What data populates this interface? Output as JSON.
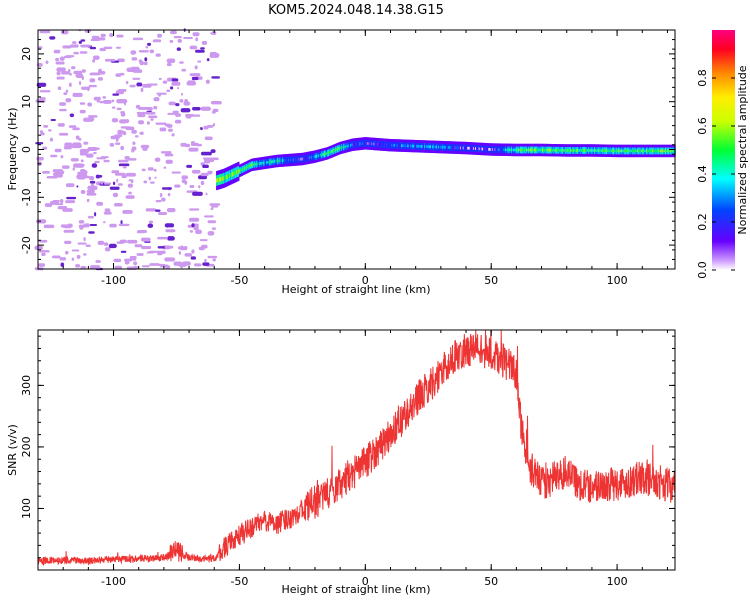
{
  "title": "KOM5.2024.048.14.38.G15",
  "colors": {
    "snr_line": "#ee3333",
    "noise_purple": "#cc99ee",
    "noise_dark": "#6622cc"
  },
  "chart_data": [
    {
      "type": "heatmap",
      "xlabel": "Height of straight line (km)",
      "ylabel": "Frequency (Hz)",
      "xlim": [
        -130,
        123
      ],
      "ylim": [
        -25,
        25
      ],
      "xticks": [
        -100,
        -50,
        0,
        50,
        100
      ],
      "yticks": [
        -20,
        -10,
        0,
        10,
        20
      ],
      "grid": false,
      "colorbar": {
        "label": "Normalized spectral amplitude",
        "range": [
          0,
          1
        ],
        "ticks": [
          "0.0",
          "0.2",
          "0.4",
          "0.6",
          "0.8"
        ],
        "colormap": "gist_rainbow_r"
      },
      "noise_region_x": [
        -130,
        -59
      ],
      "ridge": {
        "x": [
          -59,
          -56,
          -50,
          -45,
          -40,
          -35,
          -30,
          -25,
          -20,
          -15,
          -10,
          -5,
          0,
          5,
          10,
          20,
          30,
          40,
          50,
          60,
          70,
          80,
          90,
          100,
          110,
          123
        ],
        "freq": [
          -6.5,
          -6,
          -4.5,
          -3.2,
          -2.8,
          -2.4,
          -2.2,
          -2.0,
          -1.5,
          -0.8,
          0.3,
          1.0,
          1.3,
          1.1,
          0.9,
          0.7,
          0.5,
          0.3,
          0.0,
          -0.1,
          -0.1,
          -0.2,
          -0.2,
          -0.3,
          -0.3,
          -0.3
        ],
        "amplitude": [
          0.62,
          0.58,
          0.55,
          0.5,
          0.35,
          0.42,
          0.3,
          0.15,
          0.3,
          0.5,
          0.45,
          0.25,
          0.18,
          0.12,
          0.25,
          0.3,
          0.32,
          0.1,
          0.08,
          0.5,
          0.52,
          0.5,
          0.48,
          0.5,
          0.5,
          0.52
        ]
      }
    },
    {
      "type": "line",
      "xlabel": "Height of straight line (km)",
      "ylabel": "SNR (v/v)",
      "xlim": [
        -130,
        123
      ],
      "ylim": [
        0,
        390
      ],
      "xticks": [
        -100,
        -50,
        0,
        50,
        100
      ],
      "yticks": [
        100,
        200,
        300
      ],
      "grid": false,
      "series": [
        {
          "x": [
            -130,
            -120,
            -110,
            -100,
            -90,
            -80,
            -75,
            -70,
            -60,
            -55,
            -50,
            -45,
            -40,
            -35,
            -30,
            -20,
            -10,
            0,
            10,
            20,
            30,
            35,
            40,
            45,
            50,
            55,
            60,
            62,
            65,
            70,
            75,
            80,
            85,
            90,
            100,
            110,
            115,
            123
          ],
          "values": [
            15,
            16,
            15,
            17,
            18,
            20,
            30,
            20,
            18,
            40,
            55,
            70,
            80,
            75,
            85,
            110,
            140,
            175,
            220,
            275,
            320,
            345,
            358,
            360,
            350,
            340,
            320,
            230,
            170,
            140,
            150,
            160,
            140,
            135,
            140,
            150,
            145,
            135
          ]
        }
      ]
    }
  ]
}
